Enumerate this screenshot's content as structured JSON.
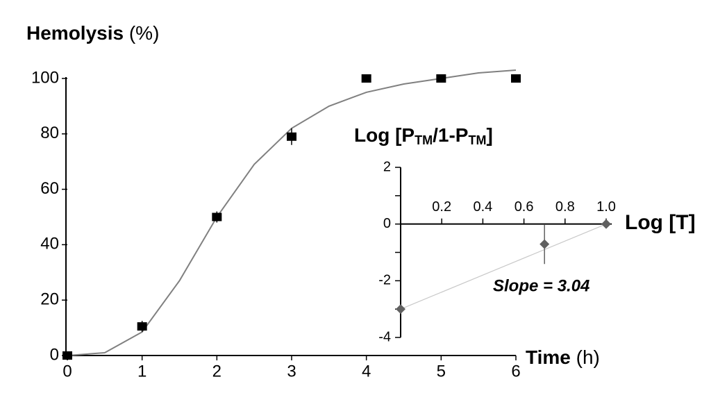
{
  "chart_data": [
    {
      "type": "scatter",
      "ylabel": "Hemolysis",
      "ylabel_unit": "(%)",
      "xlabel": "Time",
      "xlabel_unit": "(h)",
      "x": [
        0,
        1,
        2,
        3,
        4,
        5,
        6
      ],
      "values": [
        0,
        10.5,
        50,
        79,
        100,
        100,
        100
      ],
      "errors": [
        0,
        2,
        2,
        3,
        0,
        0,
        0
      ],
      "color": "#000000",
      "fit": {
        "x": [
          0,
          0.5,
          1,
          1.5,
          2,
          2.5,
          3,
          3.5,
          4,
          4.5,
          5,
          5.5,
          6
        ],
        "values": [
          0,
          1,
          8.5,
          27,
          50,
          69,
          82,
          90,
          95,
          98,
          100,
          102,
          103
        ],
        "color": "#808080"
      },
      "xlim": [
        0,
        6
      ],
      "ylim": [
        0,
        100
      ],
      "xticks": [
        0,
        1,
        2,
        3,
        4,
        5,
        6
      ],
      "yticks": [
        0,
        20,
        40,
        60,
        80,
        100
      ]
    },
    {
      "type": "scatter",
      "ylabel_parts": [
        "Log [P",
        "TM",
        "/1-P",
        "TM",
        "]"
      ],
      "xlabel": "Log [T]",
      "annotation": "Slope = 3.04",
      "annotation_color": "#ff0000",
      "x": [
        0,
        0.7,
        1
      ],
      "values": [
        -3,
        -0.71,
        0
      ],
      "errors": [
        0,
        0.7,
        0
      ],
      "color": "#606060",
      "fit": {
        "x": [
          0,
          1
        ],
        "values": [
          -3,
          0
        ],
        "color": "#c8c8c8"
      },
      "xlim": [
        0,
        1
      ],
      "ylim": [
        -4,
        2
      ],
      "xticks": [
        0.2,
        0.4,
        0.6,
        0.8,
        {
          "value": 1,
          "label": "1.0"
        }
      ],
      "yticks": [
        -4,
        -2,
        0,
        2
      ],
      "yminor": [
        -3,
        -1,
        1
      ]
    }
  ]
}
